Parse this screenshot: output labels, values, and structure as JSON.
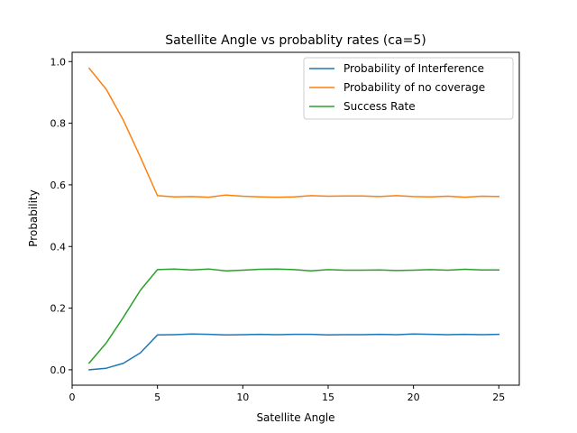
{
  "chart_data": {
    "type": "line",
    "title": "Satellite Angle vs probablity rates (ca=5)",
    "xlabel": "Satellite Angle",
    "ylabel": "Probability",
    "xlim": [
      0,
      26.2
    ],
    "ylim": [
      -0.05,
      1.03
    ],
    "xticks": [
      0,
      5,
      10,
      15,
      20,
      25
    ],
    "yticks": [
      0.0,
      0.2,
      0.4,
      0.6,
      0.8,
      1.0
    ],
    "xtick_labels": [
      "0",
      "5",
      "10",
      "15",
      "20",
      "25"
    ],
    "ytick_labels": [
      "0.0",
      "0.2",
      "0.4",
      "0.6",
      "0.8",
      "1.0"
    ],
    "grid": false,
    "legend_position": "top-right",
    "x": [
      1,
      2,
      3,
      4,
      5,
      6,
      7,
      8,
      9,
      10,
      11,
      12,
      13,
      14,
      15,
      16,
      17,
      18,
      19,
      20,
      21,
      22,
      23,
      24,
      25
    ],
    "series": [
      {
        "name": "Probability of Interference",
        "color": "#1f77b4",
        "values": [
          0.0,
          0.005,
          0.021,
          0.055,
          0.113,
          0.114,
          0.116,
          0.115,
          0.113,
          0.114,
          0.115,
          0.114,
          0.115,
          0.115,
          0.113,
          0.114,
          0.114,
          0.115,
          0.114,
          0.116,
          0.115,
          0.114,
          0.115,
          0.114,
          0.115
        ]
      },
      {
        "name": "Probability of no coverage",
        "color": "#ff7f0e",
        "values": [
          0.978,
          0.91,
          0.81,
          0.69,
          0.565,
          0.561,
          0.562,
          0.56,
          0.567,
          0.563,
          0.561,
          0.56,
          0.561,
          0.565,
          0.563,
          0.564,
          0.564,
          0.562,
          0.565,
          0.562,
          0.561,
          0.563,
          0.56,
          0.563,
          0.562
        ]
      },
      {
        "name": "Success Rate",
        "color": "#2ca02c",
        "values": [
          0.022,
          0.087,
          0.17,
          0.258,
          0.325,
          0.327,
          0.324,
          0.327,
          0.321,
          0.323,
          0.326,
          0.327,
          0.325,
          0.321,
          0.325,
          0.323,
          0.323,
          0.324,
          0.322,
          0.323,
          0.325,
          0.323,
          0.326,
          0.324,
          0.324
        ]
      }
    ]
  }
}
